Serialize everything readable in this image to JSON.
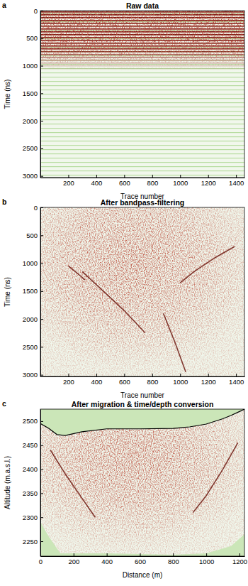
{
  "chart_data": [
    {
      "type": "radargram",
      "label": "a",
      "title": "Raw data",
      "x_label": "Trace number",
      "y_label": "Time (ns)",
      "xlim": [
        0,
        1460
      ],
      "ylim": [
        3030,
        0
      ],
      "xticks": [
        200,
        400,
        600,
        800,
        1000,
        1200,
        1400
      ],
      "yticks": [
        0,
        500,
        1000,
        1500,
        2000,
        2500,
        3000
      ],
      "series": []
    },
    {
      "type": "radargram",
      "label": "b",
      "title": "After bandpass-filtering",
      "x_label": "Trace number",
      "y_label": "Time (ns)",
      "xlim": [
        0,
        1460
      ],
      "ylim": [
        3030,
        0
      ],
      "xticks": [
        200,
        400,
        600,
        800,
        1000,
        1200,
        1400
      ],
      "yticks": [
        0,
        500,
        1000,
        1500,
        2000,
        2500,
        3000
      ],
      "series": [
        {
          "type": "line",
          "color": "#6e1a12",
          "x": [
            1390,
            1250,
            1100,
            1000
          ],
          "values": [
            700,
            900,
            1150,
            1350
          ]
        },
        {
          "type": "line",
          "color": "#6e1a12",
          "x": [
            300,
            450,
            600,
            750
          ],
          "values": [
            1150,
            1500,
            1850,
            2250
          ]
        },
        {
          "type": "line",
          "color": "#6e1a12",
          "x": [
            880,
            960,
            1040
          ],
          "values": [
            1900,
            2400,
            2950
          ]
        },
        {
          "type": "line",
          "color": "#6e1a12",
          "x": [
            200,
            250,
            320
          ],
          "values": [
            1050,
            1150,
            1300
          ]
        }
      ]
    },
    {
      "type": "radargram",
      "label": "c",
      "title": "After migration & time/depth conversion",
      "x_label": "Distance (m)",
      "y_label": "Altitude (m.a.s.l.)",
      "xlim": [
        0,
        1230
      ],
      "ylim": [
        2219,
        2525
      ],
      "xticks": [
        0,
        200,
        400,
        600,
        800,
        1000,
        1200
      ],
      "yticks": [
        2250,
        2300,
        2350,
        2400,
        2450,
        2500
      ],
      "series": [
        {
          "type": "surface",
          "color": "#000000",
          "x": [
            0,
            50,
            100,
            150,
            250,
            400,
            600,
            800,
            900,
            1000,
            1100,
            1150,
            1200,
            1230
          ],
          "values": [
            2495,
            2485,
            2472,
            2470,
            2478,
            2484,
            2484,
            2485,
            2488,
            2494,
            2505,
            2512,
            2520,
            2525
          ]
        },
        {
          "type": "base",
          "color": "#cbe6b8",
          "x": [
            0,
            50,
            120,
            400,
            800,
            1000,
            1150,
            1230
          ],
          "values": [
            2290,
            2260,
            2225,
            2225,
            2222,
            2225,
            2240,
            2265
          ]
        },
        {
          "type": "line",
          "color": "#6e1a12",
          "x": [
            1190,
            1100,
            1000,
            920
          ],
          "values": [
            2455,
            2400,
            2345,
            2310
          ]
        },
        {
          "type": "line",
          "color": "#6e1a12",
          "x": [
            60,
            150,
            250,
            330
          ],
          "values": [
            2440,
            2390,
            2340,
            2300
          ]
        }
      ]
    }
  ]
}
